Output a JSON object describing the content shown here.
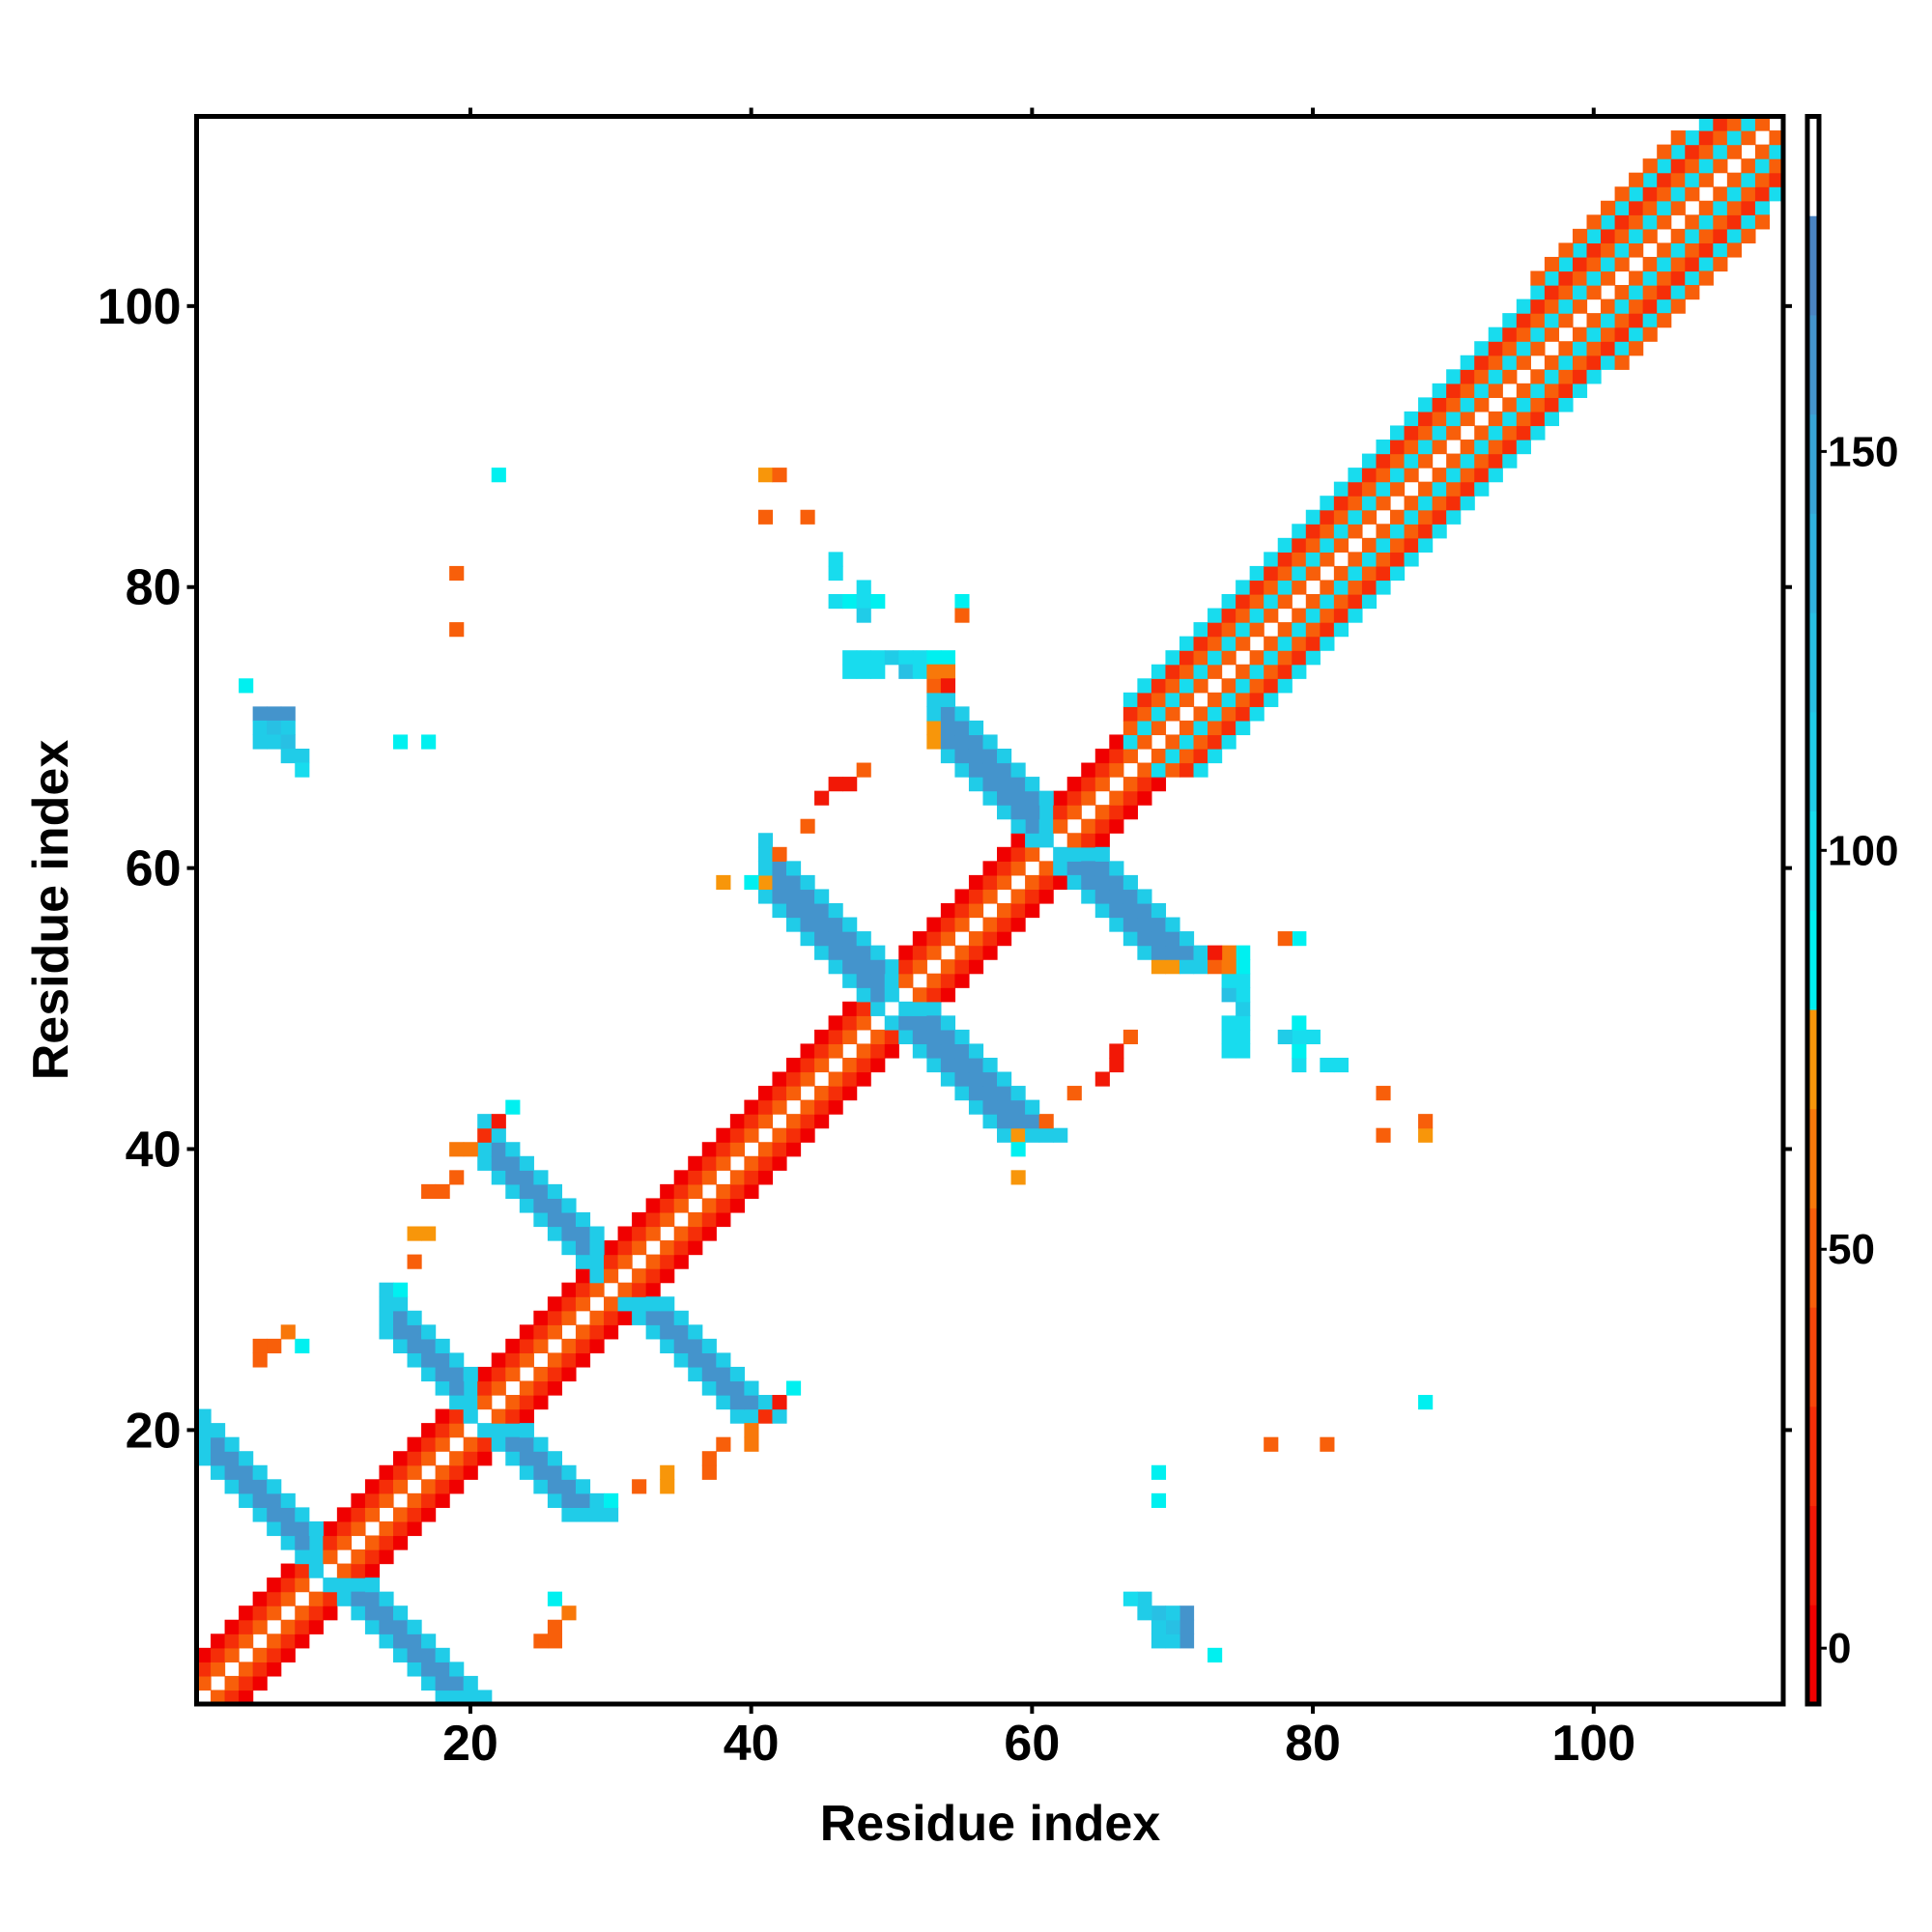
{
  "chart_data": {
    "type": "heatmap",
    "title": "",
    "xlabel": "Residue index",
    "ylabel": "Residue index",
    "n_residues": 113,
    "xlim": [
      0.5,
      113.5
    ],
    "ylim": [
      0.5,
      113.5
    ],
    "xticks": [
      20,
      40,
      60,
      80,
      100
    ],
    "yticks": [
      20,
      40,
      60,
      80,
      100
    ],
    "colorbar": {
      "range": [
        -7,
        192
      ],
      "ticks": [
        0,
        50,
        100,
        150
      ],
      "bins": [
        "#f00000",
        "#f21806",
        "#f52e08",
        "#f6460a",
        "#f85f0a",
        "#f8780a",
        "#f8960a",
        "#00f0f0",
        "#18dcee",
        "#20cce8",
        "#28c0e4",
        "#30b2de",
        "#38a4d6",
        "#4494cc",
        "#4a84c2",
        "#ffffff"
      ]
    },
    "symmetric": true,
    "diagonal_segments": [
      {
        "residues": [
          1,
          66
        ],
        "offset_values": [
          45,
          22,
          5
        ]
      },
      {
        "residues": [
          67,
          113
        ],
        "offset_values": [
          45,
          100,
          45,
          25,
          100
        ]
      },
      {
        "residues": [
          96,
          106
        ],
        "offset_values": [
          45,
          100,
          45,
          25,
          100,
          55
        ]
      }
    ],
    "antiparallel_pairs": [
      {
        "residues": [
          1,
          9
        ],
        "index_sum": 19,
        "width": 4,
        "core_value": 160,
        "edge_value": 110
      },
      {
        "residues": [
          14,
          20
        ],
        "index_sum": 41,
        "width": 4,
        "core_value": 160,
        "edge_value": 110
      },
      {
        "residues": [
          21,
          29
        ],
        "index_sum": 60,
        "width": 4,
        "core_value": 160,
        "edge_value": 110
      },
      {
        "residues": [
          41,
          50
        ],
        "index_sum": 99,
        "width": 5,
        "core_value": 165,
        "edge_value": 110
      },
      {
        "residues": [
          53,
          61
        ],
        "index_sum": 122,
        "width": 5,
        "core_value": 165,
        "edge_value": 110
      }
    ],
    "contacts": [
      [
        22,
        88,
        85
      ],
      [
        41,
        88,
        70
      ],
      [
        42,
        88,
        45
      ],
      [
        41,
        85,
        45
      ],
      [
        44,
        85,
        45
      ],
      [
        46,
        82,
        100
      ],
      [
        46,
        81,
        100
      ],
      [
        46,
        79,
        100
      ],
      [
        47,
        79,
        85
      ],
      [
        48,
        79,
        100
      ],
      [
        49,
        79,
        85
      ],
      [
        48,
        80,
        100
      ],
      [
        48,
        78,
        105
      ],
      [
        55,
        79,
        85
      ],
      [
        55,
        78,
        45
      ],
      [
        47,
        75,
        100
      ],
      [
        48,
        75,
        100
      ],
      [
        49,
        75,
        100
      ],
      [
        50,
        75,
        110
      ],
      [
        51,
        75,
        100
      ],
      [
        52,
        75,
        100
      ],
      [
        53,
        75,
        85
      ],
      [
        54,
        75,
        85
      ],
      [
        47,
        74,
        100
      ],
      [
        48,
        74,
        100
      ],
      [
        49,
        74,
        100
      ],
      [
        51,
        74,
        125
      ],
      [
        52,
        74,
        100
      ],
      [
        53,
        74,
        60
      ],
      [
        54,
        74,
        60
      ],
      [
        53,
        73,
        45
      ],
      [
        54,
        73,
        15
      ],
      [
        53,
        70,
        70
      ],
      [
        53,
        69,
        70
      ],
      [
        19,
        81,
        45
      ],
      [
        19,
        77,
        45
      ],
      [
        4,
        73,
        85
      ],
      [
        15,
        69,
        85
      ],
      [
        17,
        69,
        85
      ],
      [
        5,
        71,
        160
      ],
      [
        6,
        71,
        160
      ],
      [
        7,
        71,
        160
      ],
      [
        5,
        70,
        110
      ],
      [
        6,
        70,
        125
      ],
      [
        7,
        70,
        110
      ],
      [
        5,
        69,
        110
      ],
      [
        6,
        69,
        110
      ],
      [
        7,
        69,
        125
      ],
      [
        7,
        68,
        110
      ],
      [
        8,
        68,
        110
      ],
      [
        8,
        67,
        100
      ],
      [
        45,
        65,
        15
      ],
      [
        46,
        66,
        15
      ],
      [
        47,
        66,
        15
      ],
      [
        48,
        67,
        45
      ],
      [
        44,
        63,
        45
      ],
      [
        42,
        61,
        45
      ],
      [
        38,
        59,
        72
      ],
      [
        40,
        59,
        85
      ],
      [
        41,
        59,
        72
      ],
      [
        5,
        26,
        45
      ],
      [
        6,
        26,
        45
      ],
      [
        7,
        27,
        60
      ],
      [
        5,
        25,
        45
      ],
      [
        8,
        26,
        85
      ],
      [
        15,
        30,
        85
      ],
      [
        16,
        34,
        72
      ],
      [
        17,
        34,
        72
      ],
      [
        16,
        32,
        45
      ],
      [
        17,
        37,
        45
      ],
      [
        18,
        37,
        45
      ],
      [
        19,
        38,
        45
      ],
      [
        19,
        40,
        60
      ],
      [
        20,
        40,
        60
      ],
      [
        21,
        41,
        25
      ],
      [
        22,
        42,
        15
      ],
      [
        23,
        43,
        85
      ]
    ]
  }
}
